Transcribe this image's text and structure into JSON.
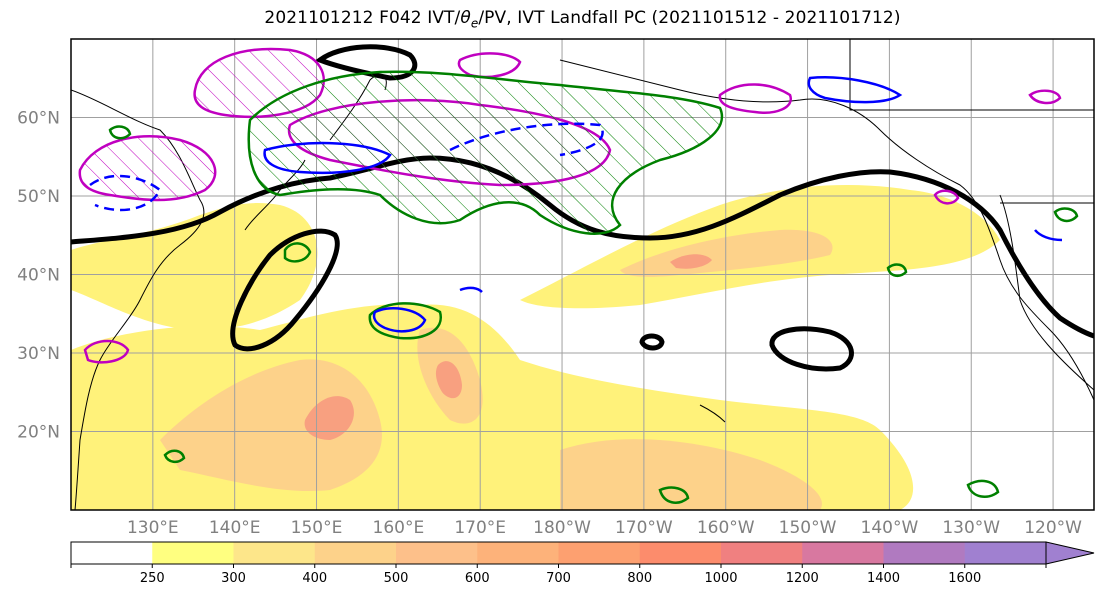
{
  "title": {
    "prefix": "2021101212 F042 IVT/",
    "theta": "θ",
    "theta_sub": "e",
    "suffix": "/PV, IVT Landfall PC (2021101512 - 2021101712)"
  },
  "map": {
    "lon_range": [
      120,
      245
    ],
    "lat_range": [
      10,
      70
    ],
    "lat_ticks": [
      {
        "value": 60,
        "label": "60°N"
      },
      {
        "value": 50,
        "label": "50°N"
      },
      {
        "value": 40,
        "label": "40°N"
      },
      {
        "value": 30,
        "label": "30°N"
      },
      {
        "value": 20,
        "label": "20°N"
      }
    ],
    "lon_ticks": [
      {
        "value": 130,
        "label": "130°E"
      },
      {
        "value": 140,
        "label": "140°E"
      },
      {
        "value": 150,
        "label": "150°E"
      },
      {
        "value": 160,
        "label": "160°E"
      },
      {
        "value": 170,
        "label": "170°E"
      },
      {
        "value": 180,
        "label": "180°W"
      },
      {
        "value": 190,
        "label": "170°W"
      },
      {
        "value": 200,
        "label": "160°W"
      },
      {
        "value": 210,
        "label": "150°W"
      },
      {
        "value": 220,
        "label": "140°W"
      },
      {
        "value": 230,
        "label": "130°W"
      },
      {
        "value": 240,
        "label": "120°W"
      }
    ],
    "colors": {
      "pv_contour": "#008000",
      "theta_contour": "#0000ff",
      "landfall_contour": "#c000c0",
      "jet_contour": "#000000",
      "grid": "#a0a0a0"
    }
  },
  "colorbar": {
    "levels": [
      "250",
      "300",
      "400",
      "500",
      "600",
      "700",
      "800",
      "1000",
      "1200",
      "1400",
      "1600"
    ],
    "colors": [
      "#ffffff",
      "#ffff80",
      "#fde68a",
      "#fdd28a",
      "#fdc08a",
      "#fdb27a",
      "#fda070",
      "#fc8c6c",
      "#f08080",
      "#d878a0",
      "#b07ac0",
      "#a080d0"
    ]
  }
}
